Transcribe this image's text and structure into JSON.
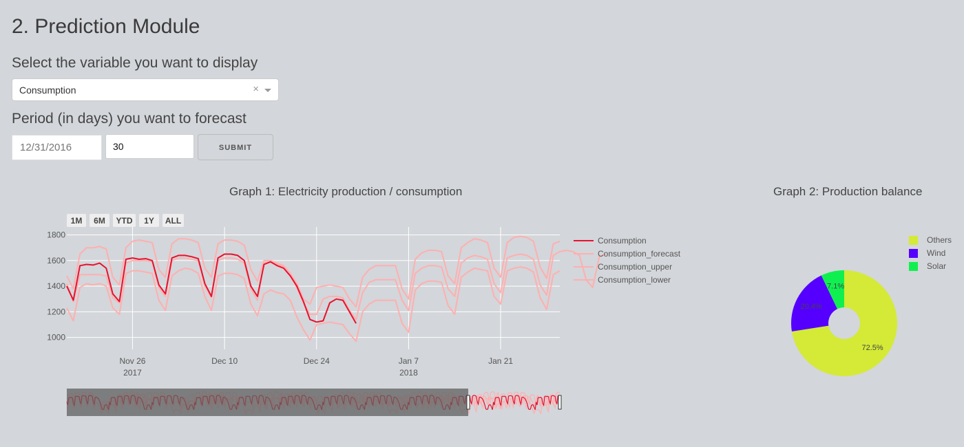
{
  "page": {
    "title": "2. Prediction Module",
    "variable_label": "Select the variable you want to display",
    "variable_value": "Consumption",
    "clear_symbol": "×",
    "period_label": "Period (in days) you want to forecast",
    "date_value": "12/31/2016",
    "days_value": "30",
    "submit_label": "SUBMIT"
  },
  "range_buttons": [
    "1M",
    "6M",
    "YTD",
    "1Y",
    "ALL"
  ],
  "chart_data": [
    {
      "type": "line",
      "title": "Graph 1: Electricity production / consumption",
      "x_start": "2017-11-16",
      "ylim": [
        950,
        1830
      ],
      "y_ticks": [
        1000,
        1200,
        1400,
        1600,
        1800
      ],
      "x_tick_labels": [
        {
          "date": "2017-11-26",
          "label": "Nov 26",
          "sub": "2017"
        },
        {
          "date": "2017-12-10",
          "label": "Dec 10",
          "sub": ""
        },
        {
          "date": "2017-12-24",
          "label": "Dec 24",
          "sub": ""
        },
        {
          "date": "2018-01-07",
          "label": "Jan 7",
          "sub": "2018"
        },
        {
          "date": "2018-01-21",
          "label": "Jan 21",
          "sub": ""
        }
      ],
      "grid": true,
      "legend_position": "right",
      "series": [
        {
          "name": "Consumption",
          "color": "#e8112d",
          "values": [
            1400,
            1290,
            1560,
            1570,
            1565,
            1580,
            1540,
            1340,
            1280,
            1610,
            1620,
            1610,
            1615,
            1600,
            1410,
            1340,
            1620,
            1640,
            1640,
            1630,
            1615,
            1420,
            1320,
            1620,
            1650,
            1650,
            1640,
            1600,
            1400,
            1320,
            1570,
            1590,
            1560,
            1540,
            1480,
            1400,
            1280,
            1140,
            1120,
            1130,
            1270,
            1300,
            1290,
            1200,
            1110
          ]
        },
        {
          "name": "Consumption_forecast",
          "color": "#ffafaf",
          "values": [
            1420,
            1280,
            1490,
            1490,
            1490,
            1490,
            1480,
            1310,
            1270,
            1580,
            1600,
            1600,
            1600,
            1590,
            1390,
            1320,
            1600,
            1620,
            1620,
            1610,
            1600,
            1400,
            1310,
            1600,
            1620,
            1620,
            1610,
            1580,
            1380,
            1290,
            1580,
            1590,
            1570,
            1550,
            1490,
            1390,
            1270,
            1180,
            1180,
            1300,
            1320,
            1320,
            1310,
            1210,
            1140,
            1350,
            1430,
            1450,
            1450,
            1450,
            1450,
            1290,
            1210,
            1500,
            1540,
            1560,
            1560,
            1550,
            1380,
            1320,
            1580,
            1620,
            1640,
            1630,
            1610,
            1420,
            1350,
            1620,
            1640,
            1650,
            1640,
            1610,
            1410,
            1330,
            1640,
            1670,
            1680,
            1670,
            1640,
            1450,
            1390,
            1630,
            1650
          ]
        },
        {
          "name": "Consumption_upper",
          "color": "#ffafaf",
          "values": [
            1480,
            1380,
            1650,
            1700,
            1700,
            1710,
            1690,
            1470,
            1410,
            1700,
            1750,
            1760,
            1750,
            1740,
            1530,
            1470,
            1730,
            1770,
            1770,
            1760,
            1740,
            1540,
            1470,
            1730,
            1760,
            1760,
            1750,
            1720,
            1530,
            1440,
            1600,
            1600,
            1580,
            1560,
            1500,
            1420,
            1300,
            1260,
            1390,
            1400,
            1410,
            1400,
            1390,
            1300,
            1240,
            1470,
            1530,
            1560,
            1560,
            1560,
            1560,
            1380,
            1300,
            1610,
            1660,
            1680,
            1680,
            1670,
            1480,
            1420,
            1700,
            1740,
            1770,
            1760,
            1740,
            1540,
            1470,
            1740,
            1780,
            1790,
            1780,
            1750,
            1550,
            1460,
            1730,
            1750
          ]
        },
        {
          "name": "Consumption_lower",
          "color": "#ffafaf",
          "values": [
            1230,
            1130,
            1390,
            1420,
            1410,
            1420,
            1400,
            1230,
            1180,
            1500,
            1520,
            1520,
            1510,
            1500,
            1290,
            1210,
            1480,
            1520,
            1540,
            1530,
            1500,
            1320,
            1210,
            1480,
            1500,
            1500,
            1490,
            1460,
            1260,
            1170,
            1340,
            1370,
            1350,
            1340,
            1290,
            1160,
            1060,
            980,
            1100,
            1110,
            1120,
            1110,
            1100,
            1030,
            970,
            1200,
            1260,
            1290,
            1290,
            1290,
            1290,
            1110,
            1040,
            1370,
            1420,
            1440,
            1440,
            1430,
            1250,
            1180,
            1470,
            1510,
            1540,
            1530,
            1520,
            1320,
            1260,
            1520,
            1540,
            1550,
            1540,
            1510,
            1310,
            1220,
            1490,
            1520
          ]
        }
      ]
    },
    {
      "type": "pie",
      "title": "Graph 2: Production balance",
      "hole": true,
      "legend_position": "top-right",
      "slices": [
        {
          "name": "Others",
          "value": 72.5,
          "label": "72.5%",
          "color": "#d4ea36"
        },
        {
          "name": "Wind",
          "value": 20.4,
          "label": "20.4%",
          "color": "#5500ff"
        },
        {
          "name": "Solar",
          "value": 7.1,
          "label": "7.1%",
          "color": "#0ff050"
        }
      ]
    }
  ]
}
